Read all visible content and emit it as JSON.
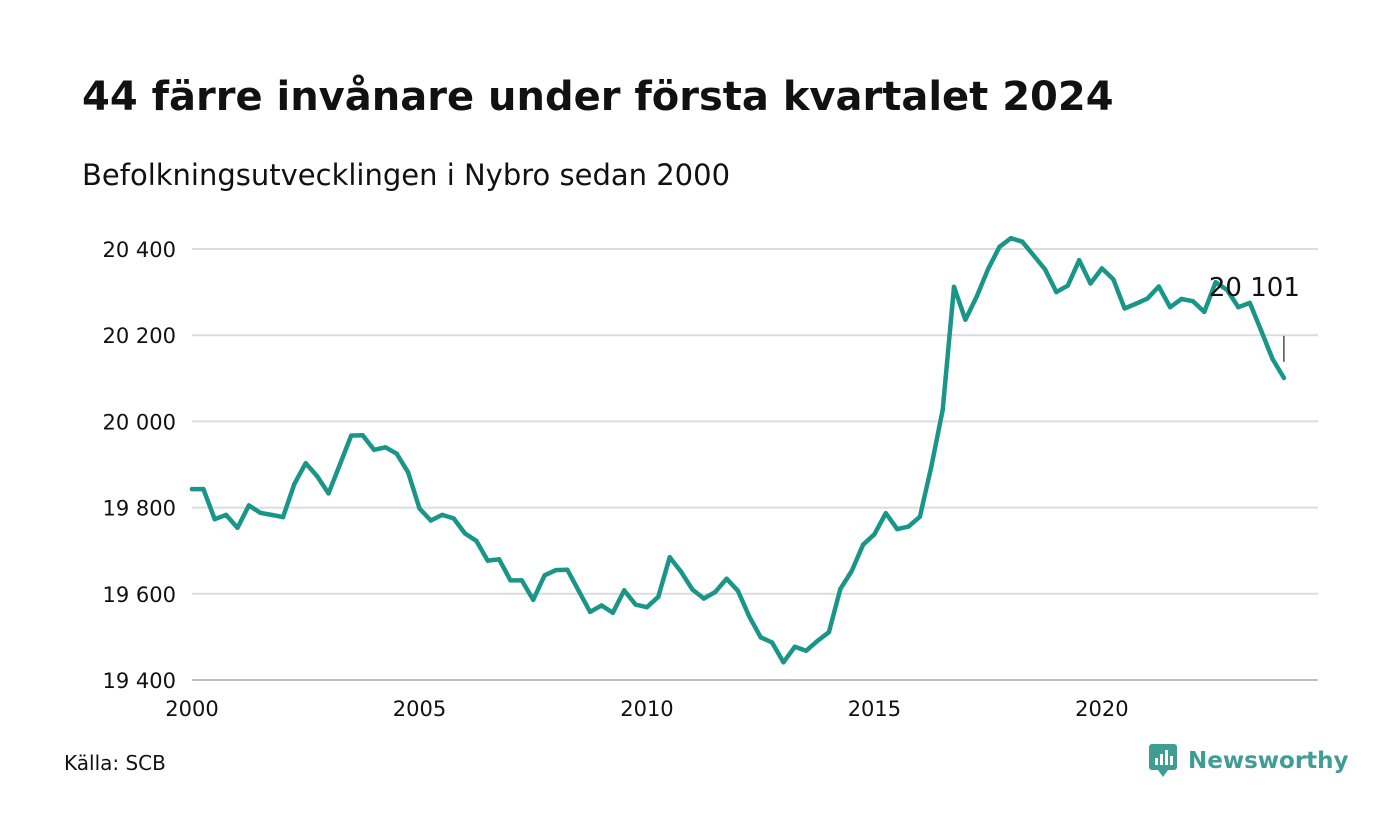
{
  "title": "44 färre invånare under första kvartalet 2024",
  "subtitle": "Befolkningsutvecklingen i Nybro sedan 2000",
  "source": "Källa: SCB",
  "brand": "Newsworthy",
  "colors": {
    "line": "#1a9688",
    "grid": "#dcdcdc",
    "brand": "#3f9d93"
  },
  "chart_data": {
    "type": "line",
    "title": "44 färre invånare under första kvartalet 2024",
    "subtitle": "Befolkningsutvecklingen i Nybro sedan 2000",
    "xlim": [
      2000,
      2024.75
    ],
    "ylim": [
      19400,
      20400
    ],
    "x_ticks": [
      2000,
      2005,
      2010,
      2015,
      2020
    ],
    "x_tick_labels": [
      "2000",
      "2005",
      "2010",
      "2015",
      "2020"
    ],
    "y_ticks": [
      19400,
      19600,
      19800,
      20000,
      20200,
      20400
    ],
    "y_tick_labels": [
      "19 400",
      "19 600",
      "19 800",
      "20 000",
      "20 200",
      "20 400"
    ],
    "grid": true,
    "annotation": {
      "text": "20 101",
      "x": 2024.0,
      "y": 20101
    },
    "series": [
      {
        "x": [
          2000.0,
          2000.25,
          2000.5,
          2000.75,
          2001.0,
          2001.25,
          2001.5,
          2001.75,
          2002.0,
          2002.25,
          2002.5,
          2002.75,
          2003.0,
          2003.25,
          2003.5,
          2003.75,
          2004.0,
          2004.25,
          2004.5,
          2004.75,
          2005.0,
          2005.25,
          2005.5,
          2005.75,
          2006.0,
          2006.25,
          2006.5,
          2006.75,
          2007.0,
          2007.25,
          2007.5,
          2007.75,
          2008.0,
          2008.25,
          2008.5,
          2008.75,
          2009.0,
          2009.25,
          2009.5,
          2009.75,
          2010.0,
          2010.25,
          2010.5,
          2010.75,
          2011.0,
          2011.25,
          2011.5,
          2011.75,
          2012.0,
          2012.25,
          2012.5,
          2012.75,
          2013.0,
          2013.25,
          2013.5,
          2013.75,
          2014.0,
          2014.25,
          2014.5,
          2014.75,
          2015.0,
          2015.25,
          2015.5,
          2015.75,
          2016.0,
          2016.25,
          2016.5,
          2016.75,
          2017.0,
          2017.25,
          2017.5,
          2017.75,
          2018.0,
          2018.25,
          2018.5,
          2018.75,
          2019.0,
          2019.25,
          2019.5,
          2019.75,
          2020.0,
          2020.25,
          2020.5,
          2020.75,
          2021.0,
          2021.25,
          2021.5,
          2021.75,
          2022.0,
          2022.25,
          2022.5,
          2022.75,
          2023.0,
          2023.25,
          2023.5,
          2023.75,
          2024.0
        ],
        "y": [
          19843,
          19843,
          19773,
          19783,
          19753,
          19805,
          19788,
          19783,
          19778,
          19855,
          19903,
          19873,
          19833,
          19900,
          19967,
          19968,
          19934,
          19940,
          19925,
          19882,
          19798,
          19770,
          19783,
          19775,
          19740,
          19723,
          19677,
          19680,
          19631,
          19631,
          19586,
          19643,
          19655,
          19656,
          19607,
          19558,
          19573,
          19556,
          19608,
          19575,
          19569,
          19593,
          19685,
          19651,
          19610,
          19589,
          19604,
          19635,
          19607,
          19547,
          19499,
          19487,
          19441,
          19477,
          19468,
          19491,
          19511,
          19611,
          19653,
          19714,
          19738,
          19787,
          19750,
          19756,
          19779,
          19895,
          20027,
          20312,
          20236,
          20290,
          20354,
          20405,
          20425,
          20417,
          20385,
          20353,
          20300,
          20315,
          20374,
          20320,
          20355,
          20330,
          20262,
          20273,
          20285,
          20313,
          20265,
          20284,
          20279,
          20254,
          20323,
          20305,
          20265,
          20275,
          20211,
          20145,
          20101
        ]
      }
    ]
  }
}
